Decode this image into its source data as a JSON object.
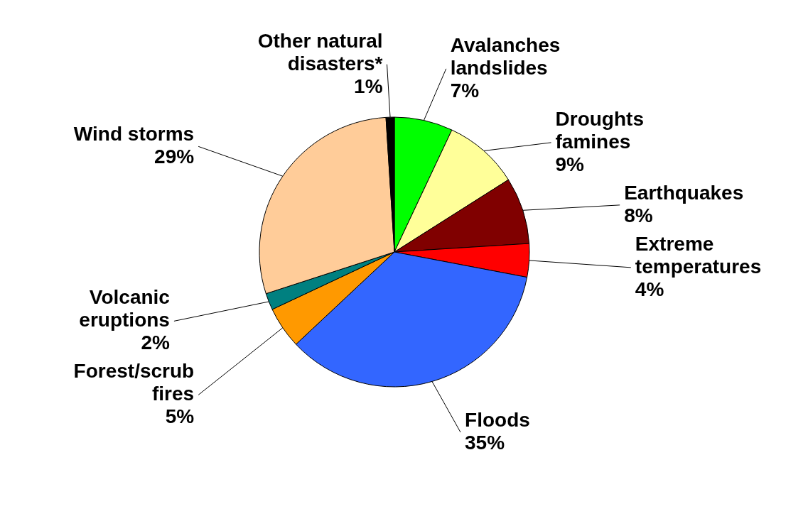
{
  "chart_data": {
    "type": "pie",
    "categories": [
      "Avalanches landslides",
      "Droughts famines",
      "Earthquakes",
      "Extreme temperatures",
      "Floods",
      "Forest/scrub fires",
      "Volcanic eruptions",
      "Wind storms",
      "Other natural disasters*"
    ],
    "values": [
      7,
      9,
      8,
      4,
      35,
      5,
      2,
      29,
      1
    ],
    "colors": [
      "#00ff00",
      "#ffff99",
      "#800000",
      "#ff0000",
      "#3366ff",
      "#ff9900",
      "#008080",
      "#ffcc99",
      "#000000"
    ],
    "value_labels": [
      "7%",
      "9%",
      "8%",
      "4%",
      "35%",
      "5%",
      "2%",
      "29%",
      "1%"
    ]
  }
}
